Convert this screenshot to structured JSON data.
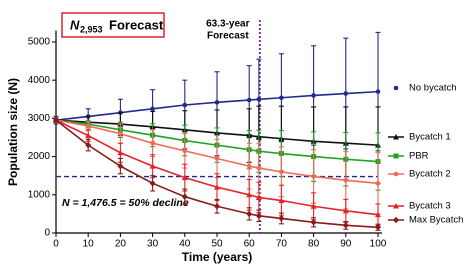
{
  "chart_data": {
    "type": "line",
    "title": {
      "symbol": "N",
      "subscript": "2,953",
      "text": "Forecast"
    },
    "x_label": "Time (years)",
    "y_label": "Population size (N)",
    "x": [
      0,
      10,
      20,
      30,
      40,
      50,
      60,
      63,
      70,
      80,
      90,
      100
    ],
    "xlim": [
      0,
      100
    ],
    "xticks": [
      0,
      10,
      20,
      30,
      40,
      50,
      60,
      70,
      80,
      90,
      100
    ],
    "ylim": [
      0,
      5300
    ],
    "yticks": [
      0,
      1000,
      2000,
      3000,
      4000,
      5000
    ],
    "grid": false,
    "series": [
      {
        "name": "No bycatch",
        "color": "#1f2a8c",
        "marker": "circle",
        "values": [
          2953,
          3050,
          3150,
          3250,
          3350,
          3420,
          3480,
          3500,
          3540,
          3600,
          3650,
          3700
        ],
        "errors": [
          100,
          200,
          350,
          500,
          650,
          800,
          900,
          1050,
          1150,
          1300,
          1450,
          1550
        ]
      },
      {
        "name": "Bycatch 1",
        "color": "#111111",
        "marker": "triangle",
        "values": [
          2953,
          2900,
          2850,
          2780,
          2700,
          2620,
          2550,
          2520,
          2470,
          2400,
          2350,
          2300
        ],
        "errors": [
          60,
          150,
          300,
          400,
          500,
          600,
          700,
          800,
          850,
          900,
          950,
          1000
        ]
      },
      {
        "name": "PBR",
        "color": "#21a121",
        "marker": "square",
        "values": [
          2953,
          2850,
          2700,
          2560,
          2420,
          2300,
          2180,
          2140,
          2080,
          2000,
          1930,
          1870
        ],
        "errors": [
          50,
          100,
          200,
          300,
          400,
          450,
          500,
          550,
          600,
          650,
          700,
          750
        ]
      },
      {
        "name": "Bycatch 2",
        "color": "#f26a5a",
        "marker": "circle",
        "values": [
          2953,
          2800,
          2600,
          2350,
          2150,
          1950,
          1750,
          1700,
          1600,
          1480,
          1380,
          1300
        ],
        "errors": [
          50,
          120,
          250,
          350,
          450,
          500,
          600,
          650,
          650,
          700,
          750,
          800
        ]
      },
      {
        "name": "Bycatch 3",
        "color": "#e3242b",
        "marker": "triangle",
        "values": [
          2953,
          2550,
          2100,
          1750,
          1450,
          1200,
          1000,
          930,
          850,
          700,
          580,
          480
        ],
        "errors": [
          50,
          150,
          250,
          300,
          350,
          350,
          400,
          400,
          400,
          350,
          300,
          280
        ]
      },
      {
        "name": "Max Bycatch",
        "color": "#8b1a1a",
        "marker": "diamond",
        "values": [
          2953,
          2300,
          1750,
          1300,
          950,
          700,
          500,
          450,
          380,
          280,
          200,
          150
        ],
        "errors": [
          50,
          150,
          200,
          200,
          200,
          180,
          160,
          150,
          140,
          120,
          100,
          80
        ]
      }
    ],
    "hline": {
      "value": 1476.5,
      "color": "#1f2a8c",
      "label": "N = 1,476.5 = 50% decline"
    },
    "vline": {
      "value": 63.3,
      "color": "#7a1fa2",
      "label": [
        "63.3-year",
        "Forecast"
      ]
    },
    "title_box_color": "#d62728"
  }
}
